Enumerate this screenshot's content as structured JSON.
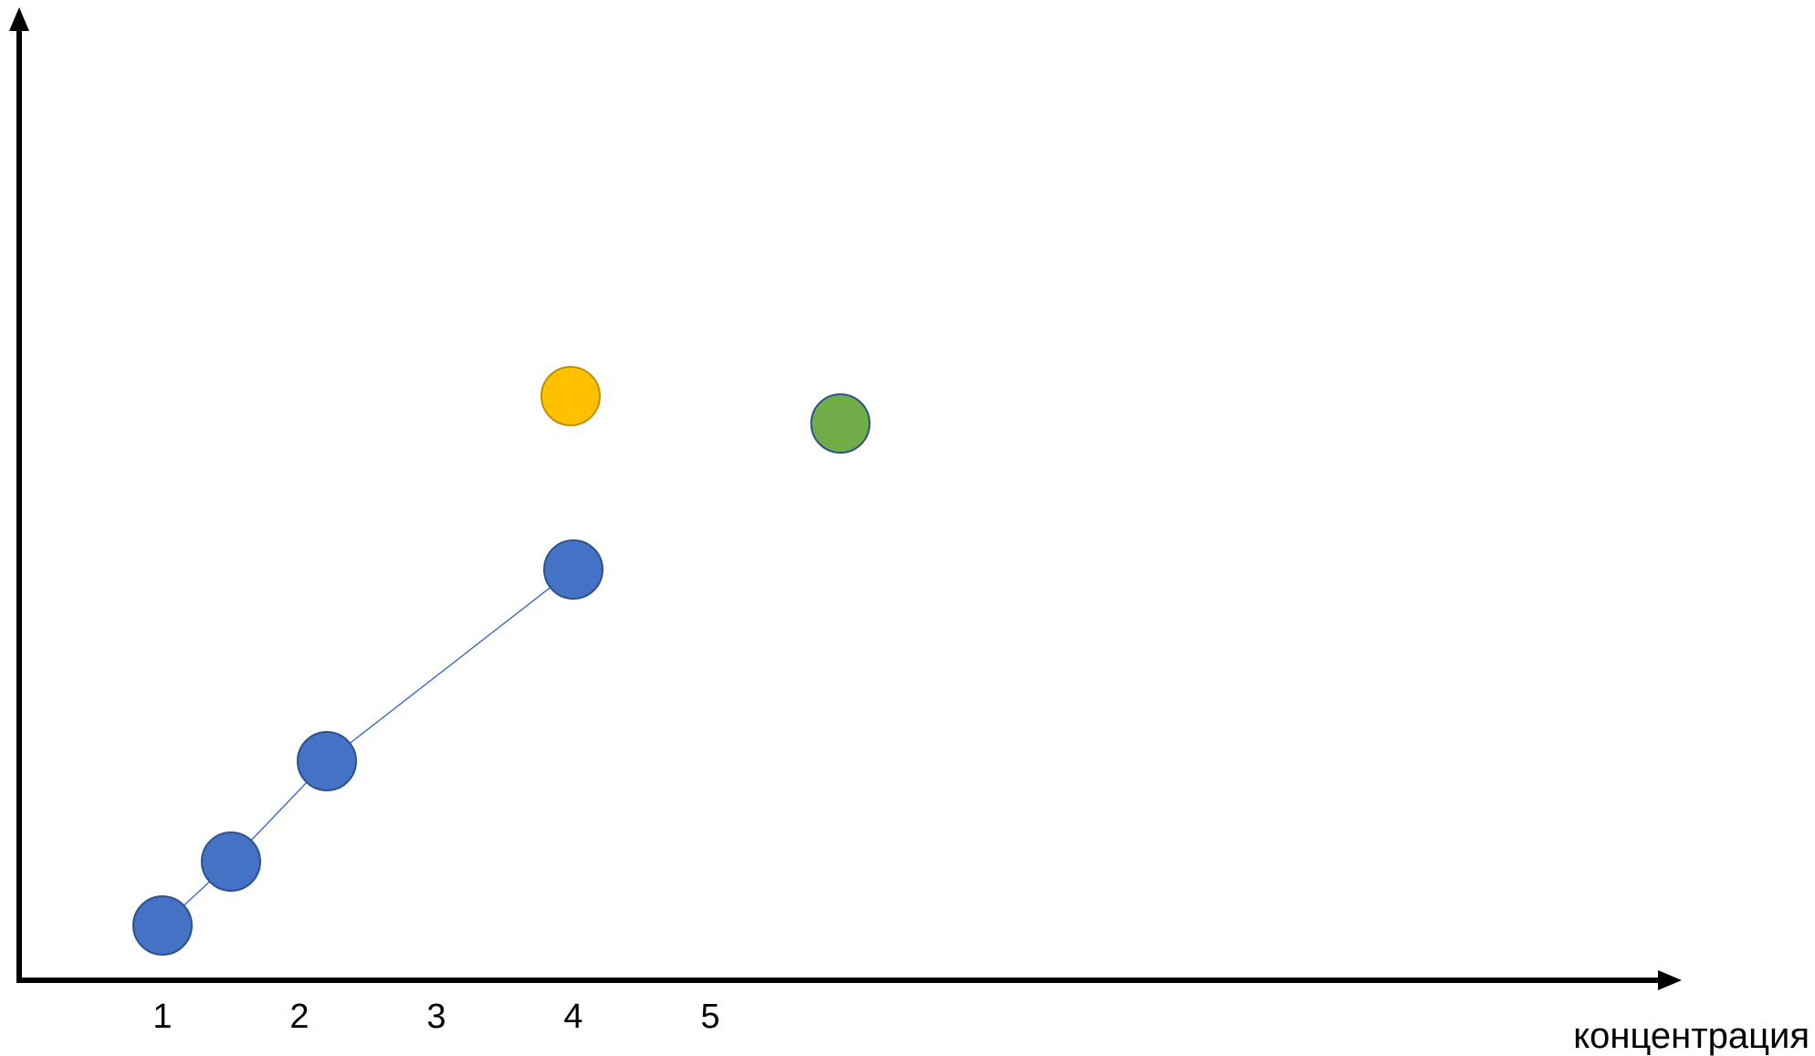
{
  "chart_data": {
    "type": "scatter",
    "title": "",
    "xlabel": "концентрация",
    "ylabel": "",
    "x_ticks": [
      "1",
      "2",
      "3",
      "4",
      "5"
    ],
    "xlim": [
      0,
      11.5
    ],
    "ylim": [
      0,
      10
    ],
    "grid": false,
    "series": [
      {
        "color": "#4472C4",
        "edge_color": "#2F528F",
        "connected": true,
        "points": [
          {
            "x": 1.0,
            "y": 0.6
          },
          {
            "x": 1.5,
            "y": 1.3
          },
          {
            "x": 2.2,
            "y": 2.4
          },
          {
            "x": 4.0,
            "y": 4.5
          }
        ]
      },
      {
        "color": "#FFC000",
        "edge_color": "#BF9000",
        "connected": false,
        "points": [
          {
            "x": 3.98,
            "y": 6.4
          }
        ]
      },
      {
        "color": "#70AD47",
        "edge_color": "#2F528F",
        "connected": false,
        "points": [
          {
            "x": 5.95,
            "y": 6.1
          }
        ]
      }
    ]
  }
}
